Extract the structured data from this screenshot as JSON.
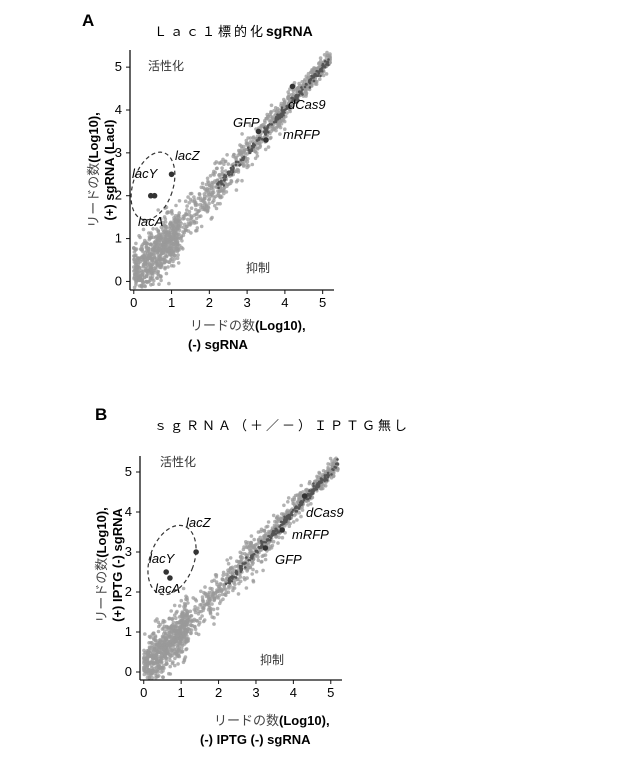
{
  "panels": [
    {
      "letter": "A",
      "title_prefix": "Ｌａｃ１標的化",
      "title_suffix": "sgRNA",
      "xlabel_jp": "リードの数",
      "xlabel_en": "(Log10),",
      "xlabel_line2": "(-) sgRNA",
      "ylabel_jp": "リードの数",
      "ylabel_en": "(Log10),",
      "ylabel_line2": "(+) sgRNA (LacI)",
      "activation_label": "活性化",
      "repression_label": "抑制"
    },
    {
      "letter": "B",
      "title_prefix": "ｓｇＲＮＡ（＋／－）ＩＰＴＧ無し",
      "title_suffix": "",
      "xlabel_jp": "リードの数",
      "xlabel_en": "(Log10),",
      "xlabel_line2": "(-) IPTG (-) sgRNA",
      "ylabel_jp": "リードの数",
      "ylabel_en": "(Log10),",
      "ylabel_line2": "(+) IPTG (-) sgRNA",
      "activation_label": "活性化",
      "repression_label": "抑制"
    }
  ],
  "chart_data": [
    {
      "type": "scatter",
      "xlim": [
        -0.1,
        5.3
      ],
      "ylim": [
        -0.2,
        5.4
      ],
      "xticks": [
        "0",
        "1",
        "2",
        "3",
        "4",
        "5"
      ],
      "yticks": [
        "0",
        "1",
        "2",
        "3",
        "4",
        "5"
      ],
      "grid": false,
      "bulk_color": "#9a9a9a",
      "highlight_color": "#333333",
      "annotations": [
        {
          "label": "lacZ",
          "x": 1.0,
          "y": 2.5
        },
        {
          "label": "lacY",
          "x": 0.45,
          "y": 2.0
        },
        {
          "label": "lacA",
          "x": 0.55,
          "y": 2.0
        },
        {
          "label": "GFP",
          "x": 3.3,
          "y": 3.5
        },
        {
          "label": "dCas9",
          "x": 4.2,
          "y": 4.55
        },
        {
          "label": "mRFP",
          "x": 3.5,
          "y": 3.3
        }
      ]
    },
    {
      "type": "scatter",
      "xlim": [
        -0.1,
        5.3
      ],
      "ylim": [
        -0.2,
        5.4
      ],
      "xticks": [
        "0",
        "1",
        "2",
        "3",
        "4",
        "5"
      ],
      "yticks": [
        "0",
        "1",
        "2",
        "3",
        "4",
        "5"
      ],
      "grid": false,
      "bulk_color": "#9a9a9a",
      "highlight_color": "#333333",
      "annotations": [
        {
          "label": "lacZ",
          "x": 1.4,
          "y": 3.0
        },
        {
          "label": "lacY",
          "x": 0.6,
          "y": 2.5
        },
        {
          "label": "lacA",
          "x": 0.7,
          "y": 2.35
        },
        {
          "label": "GFP",
          "x": 3.25,
          "y": 3.1
        },
        {
          "label": "dCas9",
          "x": 4.3,
          "y": 4.4
        },
        {
          "label": "mRFP",
          "x": 3.7,
          "y": 3.55
        }
      ]
    }
  ]
}
